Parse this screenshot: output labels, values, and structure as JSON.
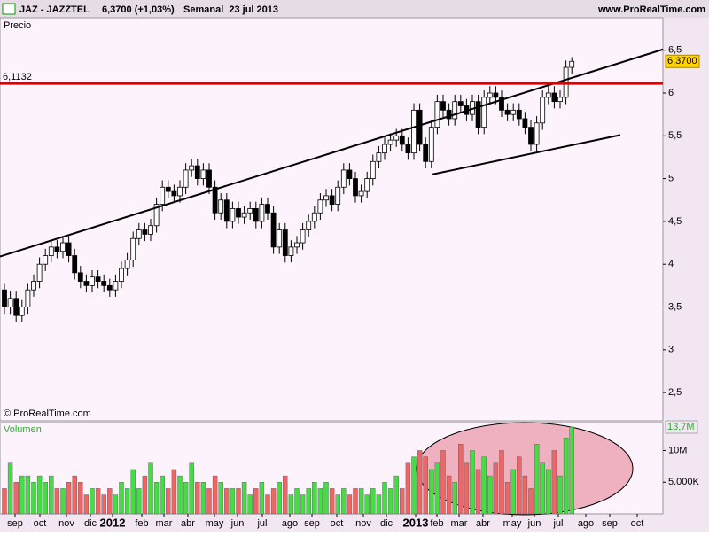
{
  "header": {
    "symbol": "JAZ - JAZZTEL",
    "quote": "6,3700 (+1,03%)",
    "period": "Semanal  23 jul 2013",
    "site": "www.ProRealTime.com"
  },
  "chart_data": {
    "type": "candlestick",
    "price_panel": "Precio",
    "volume_panel": "Volumen",
    "copyright": "© ProRealTime.com",
    "x_labels": [
      "sep",
      "oct",
      "nov",
      "dic",
      "2012",
      "feb",
      "mar",
      "abr",
      "may",
      "jun",
      "jul",
      "ago",
      "sep",
      "oct",
      "nov",
      "dic",
      "2013",
      "feb",
      "mar",
      "abr",
      "may",
      "jun",
      "jul",
      "ago",
      "sep",
      "oct"
    ],
    "open": [
      3.7,
      3.5,
      3.6,
      3.4,
      3.5,
      3.7,
      3.8,
      4.0,
      4.1,
      4.2,
      4.15,
      4.25,
      4.1,
      3.9,
      3.8,
      3.75,
      3.85,
      3.8,
      3.75,
      3.7,
      3.8,
      3.95,
      4.05,
      4.3,
      4.4,
      4.35,
      4.45,
      4.7,
      4.9,
      4.85,
      4.8,
      4.9,
      5.1,
      5.15,
      5.0,
      5.1,
      4.9,
      4.6,
      4.75,
      4.5,
      4.65,
      4.55,
      4.6,
      4.65,
      4.5,
      4.7,
      4.6,
      4.2,
      4.4,
      4.1,
      4.2,
      4.25,
      4.4,
      4.5,
      4.6,
      4.75,
      4.8,
      4.7,
      4.9,
      5.1,
      5.0,
      4.8,
      4.85,
      5.0,
      5.2,
      5.3,
      5.4,
      5.45,
      5.5,
      5.4,
      5.3,
      5.8,
      5.4,
      5.2,
      5.6,
      5.9,
      5.8,
      5.7,
      5.9,
      5.85,
      5.75,
      5.9,
      5.6,
      5.95,
      6.0,
      5.95,
      5.8,
      5.75,
      5.8,
      5.7,
      5.6,
      5.4,
      5.65,
      5.95,
      6.0,
      5.9,
      5.95,
      6.3
    ],
    "high": [
      3.78,
      3.68,
      3.68,
      3.58,
      3.78,
      3.88,
      4.08,
      4.18,
      4.28,
      4.28,
      4.33,
      4.33,
      4.18,
      3.98,
      3.88,
      3.93,
      3.93,
      3.88,
      3.83,
      3.88,
      4.03,
      4.13,
      4.38,
      4.48,
      4.48,
      4.53,
      4.78,
      4.98,
      4.98,
      4.93,
      4.98,
      5.18,
      5.23,
      5.23,
      5.18,
      5.18,
      4.98,
      4.83,
      4.83,
      4.73,
      4.73,
      4.68,
      4.73,
      4.73,
      4.78,
      4.78,
      4.68,
      4.48,
      4.48,
      4.28,
      4.33,
      4.48,
      4.58,
      4.68,
      4.83,
      4.88,
      4.88,
      4.98,
      5.18,
      5.18,
      5.08,
      4.93,
      5.08,
      5.28,
      5.38,
      5.48,
      5.53,
      5.58,
      5.58,
      5.48,
      5.88,
      5.88,
      5.48,
      5.68,
      5.98,
      5.98,
      5.88,
      5.98,
      5.98,
      5.93,
      5.98,
      5.98,
      6.03,
      6.08,
      6.08,
      6.03,
      5.88,
      5.88,
      5.88,
      5.78,
      5.68,
      5.73,
      6.03,
      6.08,
      6.08,
      6.03,
      6.38,
      6.42
    ],
    "low": [
      3.42,
      3.42,
      3.32,
      3.32,
      3.42,
      3.62,
      3.72,
      3.92,
      4.02,
      4.07,
      4.07,
      4.02,
      3.82,
      3.72,
      3.67,
      3.67,
      3.72,
      3.67,
      3.62,
      3.62,
      3.72,
      3.87,
      3.97,
      4.22,
      4.27,
      4.27,
      4.37,
      4.62,
      4.77,
      4.72,
      4.72,
      4.82,
      5.02,
      4.92,
      4.92,
      4.82,
      4.52,
      4.52,
      4.42,
      4.42,
      4.47,
      4.47,
      4.52,
      4.42,
      4.42,
      4.52,
      4.12,
      4.12,
      4.02,
      4.02,
      4.12,
      4.17,
      4.32,
      4.42,
      4.52,
      4.67,
      4.62,
      4.62,
      4.82,
      4.92,
      4.72,
      4.72,
      4.77,
      4.92,
      5.12,
      5.22,
      5.32,
      5.37,
      5.32,
      5.22,
      5.22,
      5.32,
      5.12,
      5.12,
      5.52,
      5.72,
      5.62,
      5.62,
      5.77,
      5.67,
      5.67,
      5.52,
      5.52,
      5.87,
      5.87,
      5.72,
      5.67,
      5.67,
      5.62,
      5.52,
      5.32,
      5.32,
      5.57,
      5.87,
      5.82,
      5.82,
      5.87,
      6.22
    ],
    "close": [
      3.5,
      3.6,
      3.4,
      3.5,
      3.7,
      3.8,
      4.0,
      4.1,
      4.2,
      4.15,
      4.25,
      4.1,
      3.9,
      3.8,
      3.75,
      3.85,
      3.8,
      3.75,
      3.7,
      3.8,
      3.95,
      4.05,
      4.3,
      4.4,
      4.35,
      4.45,
      4.7,
      4.9,
      4.85,
      4.8,
      4.9,
      5.1,
      5.15,
      5.0,
      5.1,
      4.9,
      4.6,
      4.75,
      4.5,
      4.65,
      4.55,
      4.6,
      4.65,
      4.5,
      4.7,
      4.6,
      4.2,
      4.4,
      4.1,
      4.2,
      4.25,
      4.4,
      4.5,
      4.6,
      4.75,
      4.8,
      4.7,
      4.9,
      5.1,
      5.0,
      4.8,
      4.85,
      5.0,
      5.2,
      5.3,
      5.4,
      5.45,
      5.5,
      5.4,
      5.3,
      5.8,
      5.4,
      5.2,
      5.6,
      5.9,
      5.8,
      5.7,
      5.9,
      5.85,
      5.75,
      5.9,
      5.6,
      5.95,
      6.0,
      5.95,
      5.8,
      5.75,
      5.8,
      5.7,
      5.6,
      5.4,
      5.65,
      5.95,
      6.0,
      5.9,
      5.95,
      6.3,
      6.37
    ],
    "volume": [
      4,
      8,
      5,
      6,
      6,
      5,
      6,
      5,
      6,
      4,
      4,
      5,
      6,
      5,
      3,
      4,
      4,
      3,
      4,
      3,
      5,
      4,
      7,
      4,
      6,
      8,
      5,
      6,
      4,
      7,
      6,
      5,
      8,
      5,
      5,
      4,
      6,
      5,
      4,
      4,
      4,
      5,
      3,
      4,
      5,
      3,
      4,
      5,
      6,
      3,
      4,
      3,
      4,
      5,
      4,
      5,
      4,
      3,
      4,
      3,
      4,
      4,
      3,
      4,
      3,
      5,
      4,
      6,
      4,
      8,
      9,
      10,
      9,
      7,
      8,
      10,
      6,
      5,
      11,
      8,
      10,
      7,
      9,
      6,
      8,
      10,
      5,
      7,
      9,
      6,
      4,
      11,
      8,
      7,
      10,
      6,
      12,
      13.7
    ],
    "ylim": [
      2.18,
      6.88
    ],
    "yticks": [
      {
        "value": 6.5,
        "label": "6,5"
      },
      6,
      {
        "value": 5.5,
        "label": "5,5"
      },
      5,
      {
        "value": 4.5,
        "label": "4,5"
      },
      4,
      {
        "value": 3.5,
        "label": "3,5"
      },
      3,
      {
        "value": 2.5,
        "label": "2,5"
      }
    ],
    "y2lim": [
      0,
      14.4
    ],
    "y2ticks": [
      {
        "value": 10,
        "label": "10M"
      },
      {
        "value": 5,
        "label": "5.000K"
      }
    ],
    "level": {
      "value": 6.1132,
      "label": "6,1132",
      "color": "#e00000"
    },
    "last_price": {
      "value": 6.37,
      "label": "6,3700"
    },
    "last_volume": {
      "value": 13.7,
      "label": "13,7M"
    },
    "trendlines": [
      {
        "x": [
          -0.76,
          112.6
        ],
        "y": [
          4.09,
          6.51
        ]
      },
      {
        "x": [
          73.2,
          105.3
        ],
        "y": [
          5.05,
          5.51
        ]
      }
    ],
    "up_color": "#ffffff",
    "down_color": "#000000",
    "volume_up_color": "#44dd44",
    "volume_down_color": "#ee6666"
  }
}
